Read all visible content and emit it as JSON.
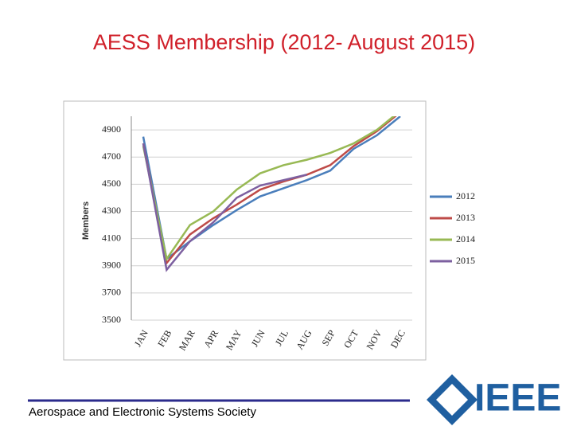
{
  "chart_data": {
    "type": "line",
    "title": "AESS Membership (2012- August 2015)",
    "ylabel": "Members",
    "categories": [
      "JAN",
      "FEB",
      "MAR",
      "APR",
      "MAY",
      "JUN",
      "JUL",
      "AUG",
      "SEP",
      "OCT",
      "NOV",
      "DEC"
    ],
    "series": [
      {
        "name": "2012",
        "color": "#4a7ebb",
        "values": [
          4850,
          3950,
          4080,
          4200,
          4310,
          4410,
          4470,
          4530,
          4600,
          4760,
          4860,
          5000
        ]
      },
      {
        "name": "2013",
        "color": "#be4b48",
        "values": [
          4800,
          3920,
          4130,
          4250,
          4350,
          4460,
          4520,
          4570,
          4640,
          4780,
          4890,
          5030
        ]
      },
      {
        "name": "2014",
        "color": "#98b954",
        "values": [
          4780,
          3950,
          4200,
          4300,
          4460,
          4580,
          4640,
          4680,
          4730,
          4800,
          4900,
          5040
        ]
      },
      {
        "name": "2015",
        "color": "#7d60a0",
        "values": [
          4800,
          3870,
          4080,
          4220,
          4400,
          4490,
          4530,
          4570,
          null,
          null,
          null,
          null
        ]
      }
    ],
    "ylim": [
      3500,
      5000
    ],
    "yticks": [
      3500,
      3700,
      3900,
      4100,
      4300,
      4500,
      4700,
      4900
    ],
    "grid": true,
    "legend": "right"
  },
  "footer": {
    "society": "Aerospace and Electronic Systems Society",
    "logo": "IEEE"
  }
}
